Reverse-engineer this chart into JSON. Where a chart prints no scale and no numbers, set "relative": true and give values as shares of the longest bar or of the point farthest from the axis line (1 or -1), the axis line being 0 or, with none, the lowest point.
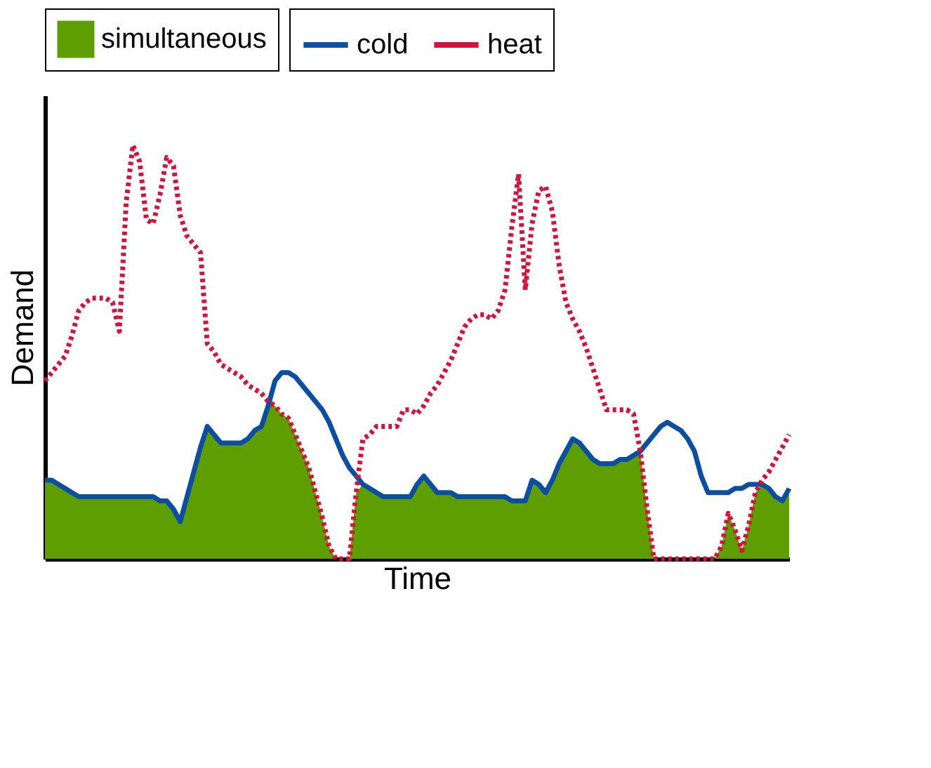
{
  "chart_data": {
    "type": "line",
    "relative": true,
    "xlabel": "Time",
    "ylabel": "Demand",
    "tick_labels": false,
    "grid": false,
    "legend": "top",
    "categories": [
      null,
      null,
      null,
      null,
      null,
      null,
      null,
      null,
      null,
      null,
      null,
      null,
      null,
      null,
      null,
      null,
      null,
      null,
      null,
      null,
      null,
      null,
      null,
      null,
      null,
      null,
      null,
      null,
      null,
      null,
      null,
      null,
      null,
      null,
      null,
      null,
      null,
      null,
      null,
      null,
      null,
      null,
      null,
      null,
      null,
      null,
      null,
      null,
      null,
      null,
      null,
      null,
      null,
      null,
      null,
      null,
      null,
      null,
      null,
      null,
      null,
      null,
      null,
      null,
      null,
      null,
      null,
      null,
      null,
      null,
      null,
      null,
      null,
      null,
      null,
      null,
      null,
      null,
      null,
      null,
      null,
      null,
      null,
      null,
      null,
      null,
      null,
      null,
      null,
      null,
      null,
      null,
      null,
      null,
      null,
      null,
      null,
      null,
      null,
      null,
      null,
      null,
      null,
      null,
      null,
      null,
      null,
      null,
      null,
      null,
      null
    ],
    "series": [
      {
        "name": "simultaneous",
        "type": "area",
        "color": "#5e9e00",
        "values": [
          0.19,
          0.19,
          0.18,
          0.17,
          0.16,
          0.15,
          0.15,
          0.15,
          0.15,
          0.15,
          0.15,
          0.15,
          0.15,
          0.15,
          0.15,
          0.15,
          0.15,
          0.14,
          0.14,
          0.12,
          0.09,
          0.15,
          0.21,
          0.27,
          0.32,
          0.3,
          0.28,
          0.28,
          0.28,
          0.28,
          0.29,
          0.31,
          0.32,
          0.37,
          0.37,
          0.35,
          0.34,
          0.3,
          0.26,
          0.22,
          0.16,
          0.1,
          0.03,
          0,
          0,
          0,
          0.16,
          0.18,
          0.17,
          0.16,
          0.15,
          0.15,
          0.15,
          0.15,
          0.15,
          0.18,
          0.2,
          0.18,
          0.16,
          0.16,
          0.16,
          0.15,
          0.15,
          0.15,
          0.15,
          0.15,
          0.15,
          0.15,
          0.15,
          0.14,
          0.14,
          0.14,
          0.19,
          0.18,
          0.16,
          0.19,
          0.23,
          0.26,
          0.29,
          0.28,
          0.26,
          0.24,
          0.23,
          0.23,
          0.23,
          0.24,
          0.24,
          0.25,
          0.26,
          0.12,
          0,
          0,
          0,
          0,
          0,
          0,
          0,
          0,
          0,
          0,
          0.03,
          0.11,
          0.07,
          0.02,
          0.08,
          0.16,
          0.18,
          0.17,
          0.15,
          0.14,
          0.17
        ]
      },
      {
        "name": "cold",
        "color": "#0b4ea2",
        "line_style": "solid",
        "values": [
          0.19,
          0.19,
          0.18,
          0.17,
          0.16,
          0.15,
          0.15,
          0.15,
          0.15,
          0.15,
          0.15,
          0.15,
          0.15,
          0.15,
          0.15,
          0.15,
          0.15,
          0.14,
          0.14,
          0.12,
          0.09,
          0.15,
          0.21,
          0.27,
          0.32,
          0.3,
          0.28,
          0.28,
          0.28,
          0.28,
          0.29,
          0.31,
          0.32,
          0.37,
          0.43,
          0.45,
          0.45,
          0.44,
          0.42,
          0.4,
          0.38,
          0.36,
          0.33,
          0.29,
          0.25,
          0.22,
          0.2,
          0.18,
          0.17,
          0.16,
          0.15,
          0.15,
          0.15,
          0.15,
          0.15,
          0.18,
          0.2,
          0.18,
          0.16,
          0.16,
          0.16,
          0.15,
          0.15,
          0.15,
          0.15,
          0.15,
          0.15,
          0.15,
          0.15,
          0.14,
          0.14,
          0.14,
          0.19,
          0.18,
          0.16,
          0.19,
          0.23,
          0.26,
          0.29,
          0.28,
          0.26,
          0.24,
          0.23,
          0.23,
          0.23,
          0.24,
          0.24,
          0.25,
          0.26,
          0.28,
          0.3,
          0.32,
          0.33,
          0.32,
          0.31,
          0.29,
          0.26,
          0.2,
          0.16,
          0.16,
          0.16,
          0.16,
          0.17,
          0.17,
          0.18,
          0.18,
          0.18,
          0.17,
          0.15,
          0.14,
          0.17
        ]
      },
      {
        "name": "heat",
        "color": "#d2143c",
        "line_style": "dotted",
        "values": [
          0.43,
          0.45,
          0.47,
          0.49,
          0.54,
          0.6,
          0.62,
          0.63,
          0.63,
          0.63,
          0.62,
          0.55,
          0.86,
          1.0,
          0.96,
          0.82,
          0.81,
          0.88,
          0.97,
          0.95,
          0.83,
          0.78,
          0.76,
          0.74,
          0.52,
          0.5,
          0.47,
          0.46,
          0.45,
          0.44,
          0.42,
          0.41,
          0.4,
          0.38,
          0.37,
          0.35,
          0.34,
          0.3,
          0.26,
          0.22,
          0.16,
          0.1,
          0.03,
          0,
          0,
          0,
          0.16,
          0.29,
          0.3,
          0.32,
          0.32,
          0.32,
          0.32,
          0.36,
          0.36,
          0.35,
          0.37,
          0.4,
          0.42,
          0.45,
          0.48,
          0.52,
          0.56,
          0.58,
          0.59,
          0.59,
          0.58,
          0.6,
          0.65,
          0.8,
          0.93,
          0.65,
          0.81,
          0.89,
          0.9,
          0.84,
          0.71,
          0.62,
          0.58,
          0.55,
          0.51,
          0.46,
          0.41,
          0.36,
          0.36,
          0.36,
          0.36,
          0.35,
          0.26,
          0.12,
          0,
          0,
          0,
          0,
          0,
          0,
          0,
          0,
          0,
          0,
          0.03,
          0.11,
          0.07,
          0.02,
          0.08,
          0.16,
          0.19,
          0.21,
          0.24,
          0.27,
          0.3
        ]
      }
    ]
  }
}
